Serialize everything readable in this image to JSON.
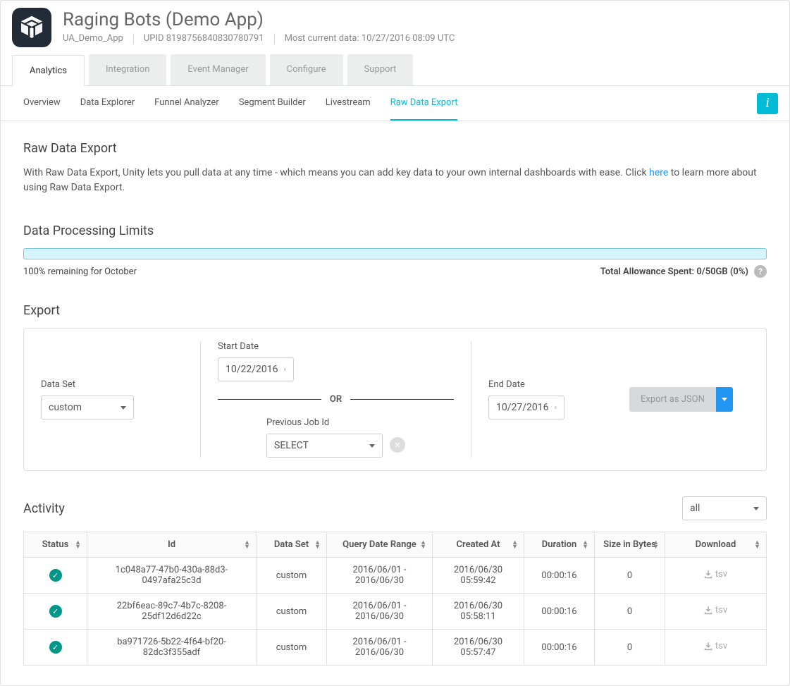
{
  "header": {
    "app_title": "Raging Bots (Demo App)",
    "app_name": "UA_Demo_App",
    "upid_label": "UPID 8198756840830780791",
    "current_data": "Most current data: 10/27/2016 08:09 UTC"
  },
  "main_tabs": {
    "items": [
      "Analytics",
      "Integration",
      "Event Manager",
      "Configure",
      "Support"
    ],
    "active_index": 0
  },
  "sub_tabs": {
    "items": [
      "Overview",
      "Data Explorer",
      "Funnel Analyzer",
      "Segment Builder",
      "Livestream",
      "Raw Data Export"
    ],
    "active_index": 5
  },
  "rde": {
    "title": "Raw Data Export",
    "desc_pre": "With Raw Data Export, Unity lets you pull data at any time - which means you can add key data to your own internal dashboards with ease. Click ",
    "desc_link": "here",
    "desc_post": " to learn more about using Raw Data Export."
  },
  "limits": {
    "title": "Data Processing Limits",
    "remaining": "100% remaining for October",
    "allowance": "Total Allowance Spent: 0/50GB (0%)",
    "bar_fill_pct": 0,
    "bar_bg": "#d6f4fb",
    "bar_border": "#7ac6d8"
  },
  "export": {
    "title": "Export",
    "dataset_label": "Data Set",
    "dataset_value": "custom",
    "start_label": "Start Date",
    "start_value": "10/22/2016",
    "or_text": "OR",
    "prev_label": "Previous Job Id",
    "prev_value": "SELECT",
    "end_label": "End Date",
    "end_value": "10/27/2016",
    "button_label": "Export as JSON"
  },
  "activity": {
    "title": "Activity",
    "filter_value": "all",
    "columns": [
      "Status",
      "Id",
      "Data Set",
      "Query Date Range",
      "Created At",
      "Duration",
      "Size in Bytes",
      "Download"
    ],
    "rows": [
      {
        "status": "ok",
        "id": "1c048a77-47b0-430a-88d3-0497afa25c3d",
        "dataset": "custom",
        "range": "2016/06/01 - 2016/06/30",
        "created": "2016/06/30 05:59:42",
        "duration": "00:00:16",
        "size": "0",
        "dl": "tsv"
      },
      {
        "status": "ok",
        "id": "22bf6eac-89c7-4b7c-8208-25df12d6d22c",
        "dataset": "custom",
        "range": "2016/06/01 - 2016/06/30",
        "created": "2016/06/30 05:58:11",
        "duration": "00:00:16",
        "size": "0",
        "dl": "tsv"
      },
      {
        "status": "ok",
        "id": "ba971726-5b22-4f64-bf20-82dc3f355adf",
        "dataset": "custom",
        "range": "2016/06/01 - 2016/06/30",
        "created": "2016/06/30 05:57:47",
        "duration": "00:00:16",
        "size": "0",
        "dl": "tsv"
      }
    ]
  },
  "colors": {
    "accent": "#00bcd4",
    "link": "#2196f3",
    "success": "#009688"
  }
}
